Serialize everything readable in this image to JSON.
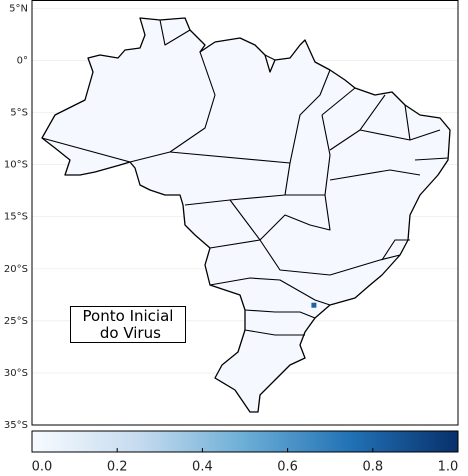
{
  "chart_data": {
    "type": "map",
    "annotation": "Ponto Inicial\n do Virus",
    "ylim": [
      -35,
      5.8
    ],
    "xlim": [
      -73.6,
      -32.8
    ],
    "yticks": [
      {
        "value": 5,
        "label": "5°N"
      },
      {
        "value": 0,
        "label": "0°"
      },
      {
        "value": -5,
        "label": "5°S"
      },
      {
        "value": -10,
        "label": "10°S"
      },
      {
        "value": -15,
        "label": "15°S"
      },
      {
        "value": -20,
        "label": "20°S"
      },
      {
        "value": -25,
        "label": "25°S"
      },
      {
        "value": -30,
        "label": "30°S"
      },
      {
        "value": -35,
        "label": "35°S"
      }
    ],
    "grid": true,
    "points": {
      "lon": [
        -46.6
      ],
      "lat": [
        -23.5
      ],
      "values": [
        0.8
      ]
    },
    "colormap": [
      "#f7fbff",
      "#c6dbef",
      "#6baed6",
      "#2171b5",
      "#08306b"
    ],
    "clim": [
      0,
      1
    ],
    "cticks": [
      {
        "value": 0,
        "label": "0.0"
      },
      0.2,
      0.4,
      0.6,
      0.8,
      {
        "value": 1,
        "label": "1.0"
      }
    ]
  }
}
